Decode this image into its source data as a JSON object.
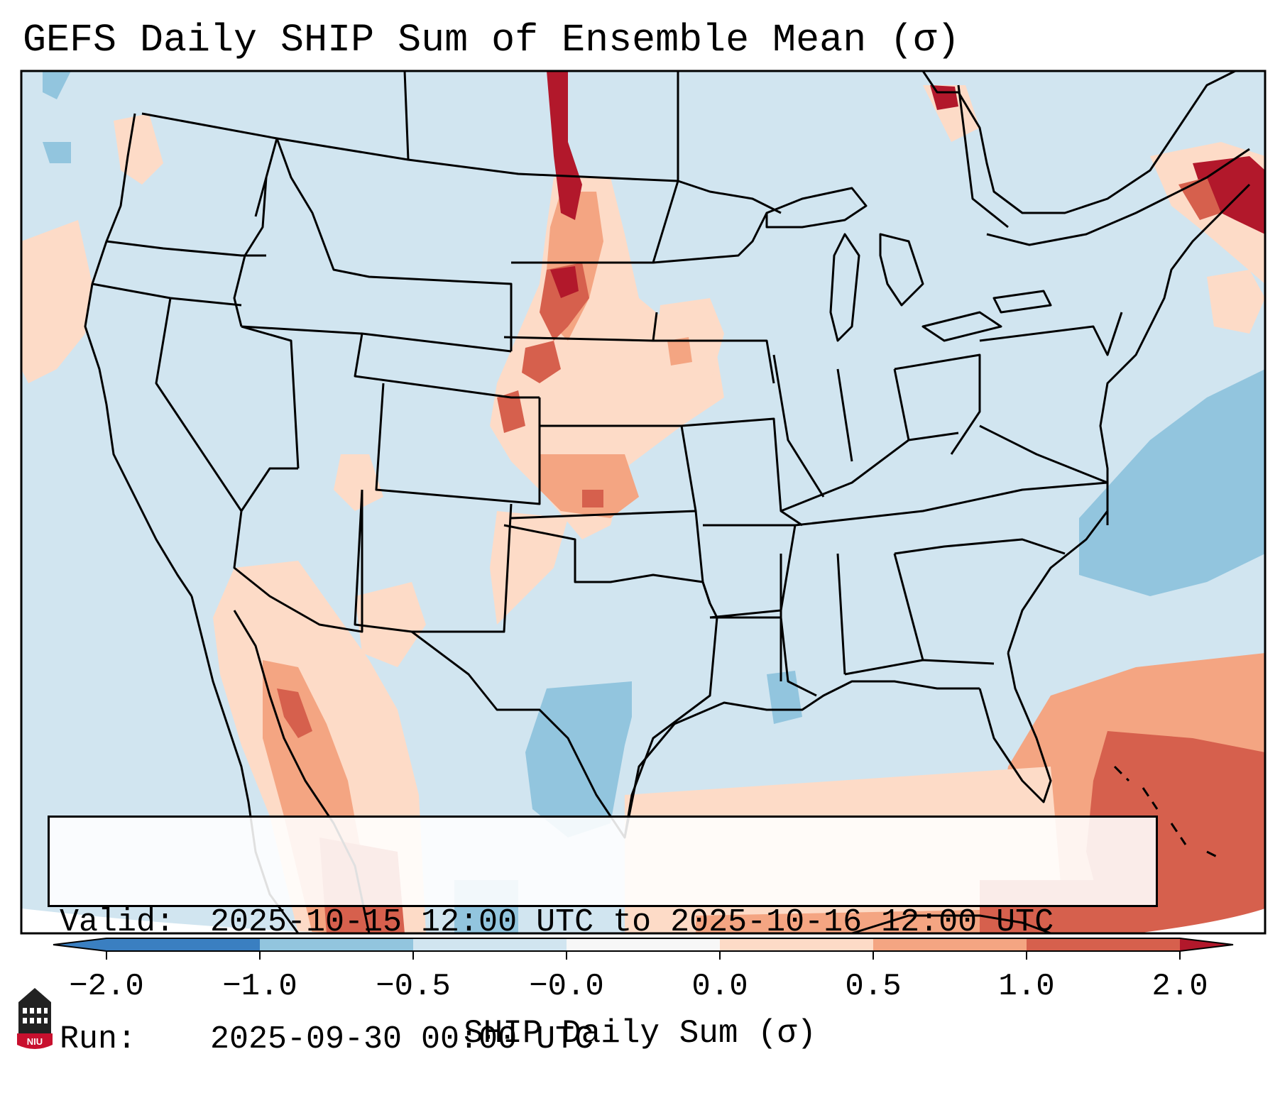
{
  "title": "GEFS Daily SHIP Sum of Ensemble Mean (σ)",
  "info": {
    "valid_label": "Valid:",
    "valid_value": "2025-10-15 12:00 UTC to 2025-10-16 12:00 UTC",
    "run_label": "Run:",
    "run_value": "2025-09-30 00:00 UTC"
  },
  "colorbar": {
    "label": "SHIP Daily Sum (σ)",
    "ticks": [
      "−2.0",
      "−1.0",
      "−0.5",
      "−0.0",
      "0.0",
      "0.5",
      "1.0",
      "2.0"
    ],
    "colors": [
      "#3a7fc1",
      "#92c5de",
      "#d1e5f0",
      "#f7f7f7",
      "#fddbc7",
      "#f4a582",
      "#d6604d",
      "#b2182b"
    ]
  },
  "logo": {
    "text": "NIU",
    "icon": "niu-building-icon"
  }
}
